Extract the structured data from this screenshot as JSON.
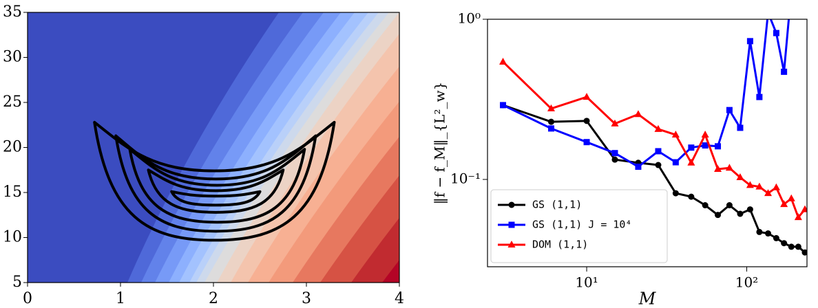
{
  "chart_data": [
    {
      "type": "contour",
      "xlim": [
        0,
        4
      ],
      "ylim": [
        5,
        35
      ],
      "xticks": [
        0,
        1,
        2,
        3,
        4
      ],
      "yticks": [
        5,
        10,
        15,
        20,
        25,
        30,
        35
      ]
    },
    {
      "type": "line",
      "xscale": "log",
      "yscale": "log",
      "x_label": "M",
      "y_label": "‖f − f_M‖_{L²_w}",
      "legend": "lower left",
      "x": [
        3,
        6,
        10,
        15,
        21,
        28,
        36,
        45,
        55,
        66,
        78,
        91,
        105,
        120,
        136,
        153,
        171,
        190,
        210,
        231
      ],
      "xlim": [
        2.4,
        238
      ],
      "ylim": [
        0.0285,
        1
      ],
      "xticks": [
        {
          "value": 10,
          "label": "10¹"
        },
        {
          "value": 100,
          "label": "10²"
        }
      ],
      "yticks": [
        {
          "value": 0.1,
          "label": "10⁻¹"
        },
        {
          "value": 1,
          "label": "10⁰"
        }
      ],
      "series": [
        {
          "name": "GS (1,1)",
          "color": "#000000",
          "marker": "circle",
          "values": [
            0.291,
            0.229,
            0.232,
            0.133,
            0.127,
            0.123,
            0.082,
            0.078,
            0.069,
            0.06,
            0.069,
            0.061,
            0.065,
            0.047,
            0.046,
            0.043,
            0.04,
            0.038,
            0.038,
            0.035
          ]
        },
        {
          "name": "GS (1,1) J = 10⁴",
          "color": "#0000ff",
          "marker": "square",
          "values": [
            0.291,
            0.208,
            0.171,
            0.146,
            0.12,
            0.15,
            0.128,
            0.158,
            0.163,
            0.161,
            0.271,
            0.21,
            0.73,
            0.327,
            1.1,
            0.82,
            0.47,
            1.5,
            null,
            null
          ]
        },
        {
          "name": "DOM (1,1)",
          "color": "#ff0000",
          "marker": "triangle",
          "values": [
            0.542,
            0.277,
            0.327,
            0.223,
            0.255,
            0.206,
            0.19,
            0.127,
            0.19,
            0.116,
            0.118,
            0.103,
            0.092,
            0.09,
            0.082,
            0.089,
            0.07,
            0.076,
            0.058,
            0.065
          ]
        }
      ]
    }
  ]
}
